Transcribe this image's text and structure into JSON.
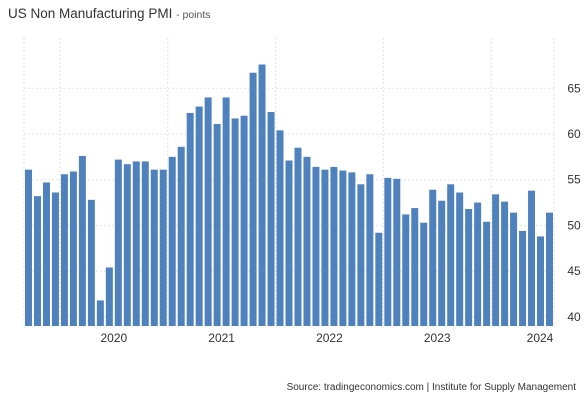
{
  "chart_data": {
    "type": "bar",
    "title": "US Non Manufacturing PMI",
    "unit_label": "- points",
    "source": "Source: tradingeconomics.com | Institute for Supply Management",
    "bar_color": "#4f81bd",
    "grid": true,
    "y_axis_position": "right",
    "ylim": [
      39,
      70.5
    ],
    "y_ticks": [
      40,
      45,
      50,
      55,
      60,
      65
    ],
    "x_ticks": [
      {
        "label": "2020",
        "start_index": 4
      },
      {
        "label": "2021",
        "start_index": 16
      },
      {
        "label": "2022",
        "start_index": 28
      },
      {
        "label": "2023",
        "start_index": 40
      },
      {
        "label": "2024",
        "start_index": 52
      }
    ],
    "series": [
      {
        "values": [
          56.1,
          53.2,
          54.7,
          53.6,
          55.6,
          55.9,
          57.6,
          52.8,
          41.8,
          45.4,
          57.2,
          56.7,
          57.0,
          57.0,
          56.1,
          56.1,
          57.5,
          58.6,
          62.3,
          63.0,
          64.0,
          61.1,
          64.0,
          61.7,
          62.0,
          66.7,
          67.6,
          62.4,
          60.4,
          57.1,
          58.5,
          57.5,
          56.4,
          56.1,
          56.4,
          56.0,
          55.8,
          54.5,
          55.6,
          49.2,
          55.2,
          55.1,
          51.2,
          51.9,
          50.3,
          53.9,
          52.7,
          54.5,
          53.6,
          51.8,
          52.5,
          50.4,
          53.4,
          52.6,
          51.4,
          49.4,
          53.8,
          48.8,
          51.4
        ]
      }
    ]
  }
}
